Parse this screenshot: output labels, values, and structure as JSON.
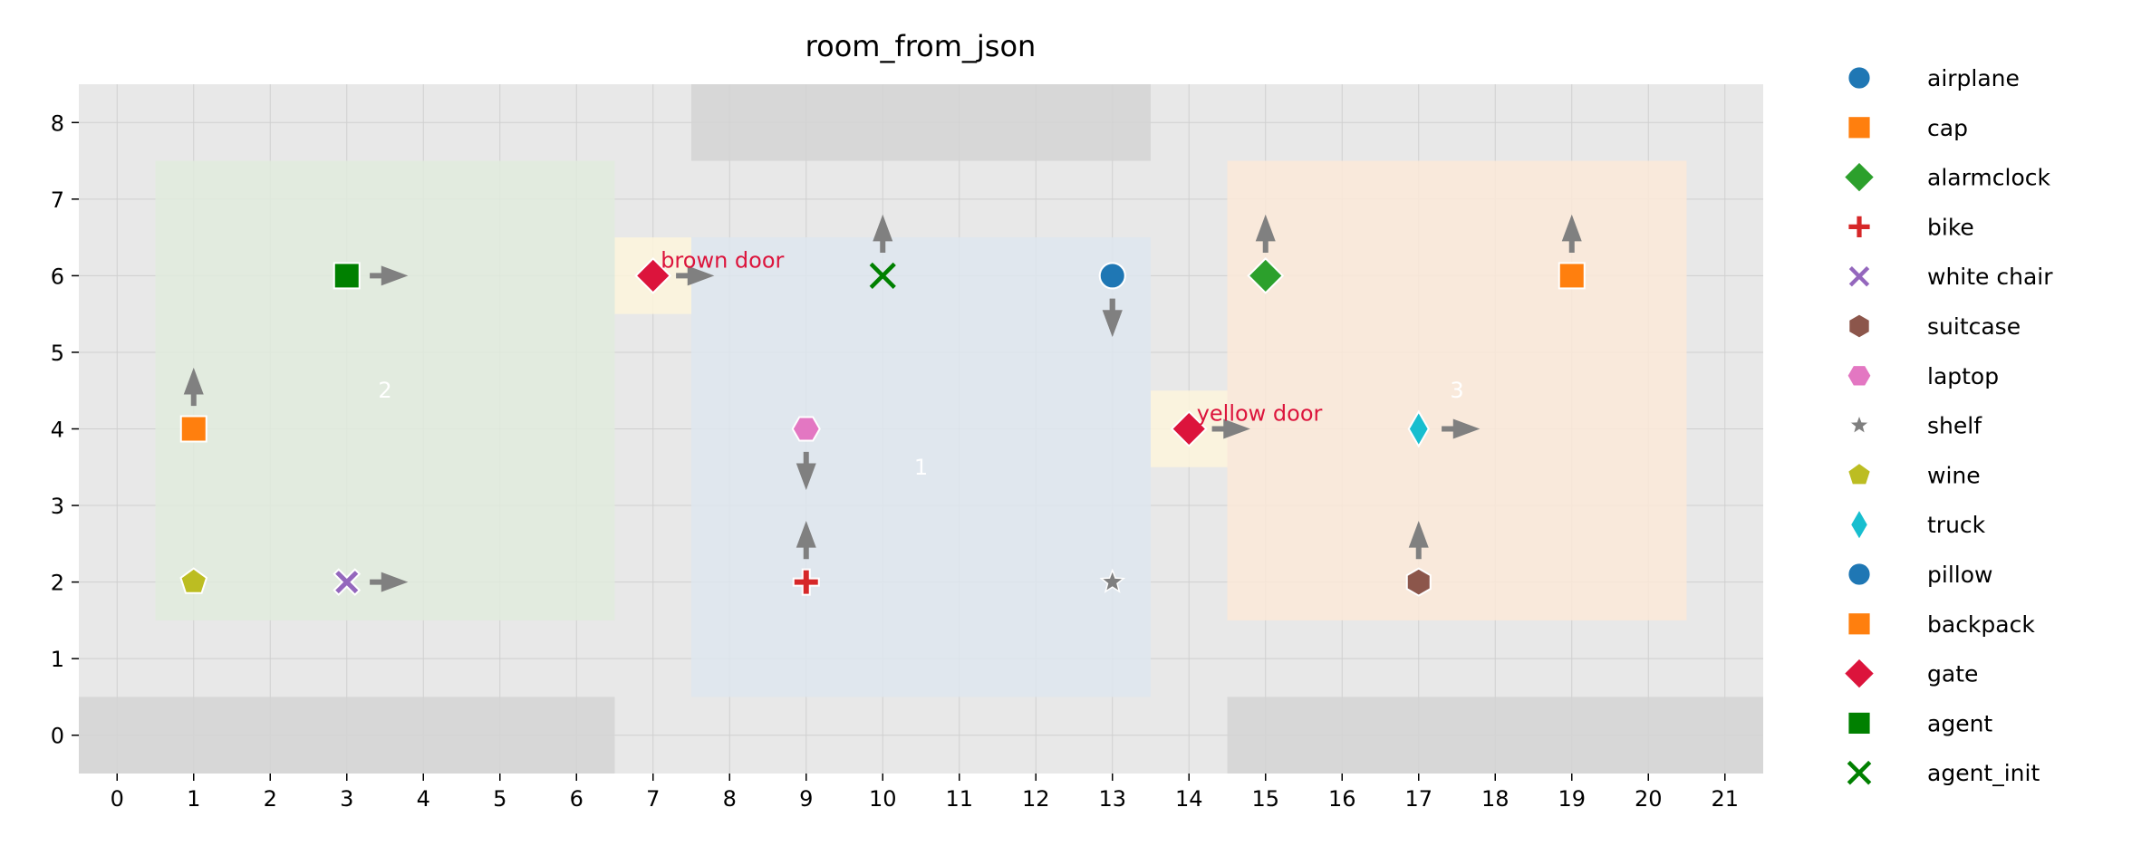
{
  "chart_data": {
    "type": "scatter",
    "title": "room_from_json",
    "xlim": [
      -0.5,
      21.5
    ],
    "ylim": [
      -0.5,
      8.5
    ],
    "xticks": [
      0,
      1,
      2,
      3,
      4,
      5,
      6,
      7,
      8,
      9,
      10,
      11,
      12,
      13,
      14,
      15,
      16,
      17,
      18,
      19,
      20,
      21
    ],
    "yticks": [
      0,
      1,
      2,
      3,
      4,
      5,
      6,
      7,
      8
    ],
    "grid": true,
    "legend_placement": "outside-right",
    "colors": {
      "background": "#e8e8e8",
      "grid": "#cfcfcf",
      "wall": "#d4d4d4",
      "arrow": "#808080",
      "door_label": "#dc143c",
      "room_label": "#ffffff"
    },
    "walls": [
      {
        "x": [
          7.5,
          13.5
        ],
        "y": [
          7.5,
          8.5
        ]
      },
      {
        "x": [
          -0.5,
          6.5
        ],
        "y": [
          -0.5,
          0.5
        ]
      },
      {
        "x": [
          14.5,
          21.5
        ],
        "y": [
          -0.5,
          0.5
        ]
      }
    ],
    "rooms": [
      {
        "label": "2",
        "x": [
          0.5,
          6.5
        ],
        "y": [
          1.5,
          7.5
        ],
        "color": "#e0ebdd",
        "label_at": [
          3.5,
          4.5
        ]
      },
      {
        "label": "1",
        "x": [
          7.5,
          13.5
        ],
        "y": [
          0.5,
          6.5
        ],
        "color": "#dee6ee",
        "label_at": [
          10.5,
          3.5
        ]
      },
      {
        "label": "3",
        "x": [
          14.5,
          20.5
        ],
        "y": [
          1.5,
          7.5
        ],
        "color": "#fbe9d8",
        "label_at": [
          17.5,
          4.5
        ]
      }
    ],
    "doors": [
      {
        "label": "brown door",
        "x": [
          6.5,
          7.5
        ],
        "y": [
          5.5,
          6.5
        ],
        "color": "#fdf5dc",
        "label_at": [
          7.1,
          6.2
        ]
      },
      {
        "label": "yellow door",
        "x": [
          13.5,
          14.5
        ],
        "y": [
          3.5,
          4.5
        ],
        "color": "#fdf5dc",
        "label_at": [
          14.1,
          4.2
        ]
      }
    ],
    "series": [
      {
        "name": "airplane",
        "marker": "circle",
        "color": "#1f77b4",
        "points": [
          {
            "x": 13,
            "y": 6,
            "dir": "down"
          }
        ]
      },
      {
        "name": "cap",
        "marker": "square",
        "color": "#ff7f0e",
        "points": [
          {
            "x": 1,
            "y": 4,
            "dir": "up"
          }
        ]
      },
      {
        "name": "alarmclock",
        "marker": "diamond",
        "color": "#2ca02c",
        "points": [
          {
            "x": 15,
            "y": 6,
            "dir": "up"
          }
        ]
      },
      {
        "name": "bike",
        "marker": "plus",
        "color": "#d62728",
        "points": [
          {
            "x": 9,
            "y": 2,
            "dir": "up"
          }
        ]
      },
      {
        "name": "white chair",
        "marker": "xfilled",
        "color": "#9467bd",
        "points": [
          {
            "x": 3,
            "y": 2,
            "dir": "right"
          }
        ]
      },
      {
        "name": "suitcase",
        "marker": "hexagon",
        "color": "#8c564b",
        "points": [
          {
            "x": 17,
            "y": 2,
            "dir": "up"
          }
        ]
      },
      {
        "name": "laptop",
        "marker": "hexagon2",
        "color": "#e377c2",
        "points": [
          {
            "x": 9,
            "y": 4,
            "dir": "down"
          }
        ]
      },
      {
        "name": "shelf",
        "marker": "star",
        "color": "#7f7f7f",
        "points": [
          {
            "x": 13,
            "y": 2,
            "dir": null
          }
        ]
      },
      {
        "name": "wine",
        "marker": "pentagon",
        "color": "#bcbd22",
        "points": [
          {
            "x": 1,
            "y": 2,
            "dir": null
          }
        ]
      },
      {
        "name": "truck",
        "marker": "thin_diamond",
        "color": "#17becf",
        "points": [
          {
            "x": 17,
            "y": 4,
            "dir": "right"
          }
        ]
      },
      {
        "name": "pillow",
        "marker": "circle",
        "color": "#1f77b4",
        "points": [
          {
            "x": 13,
            "y": 6,
            "dir": "down"
          }
        ]
      },
      {
        "name": "backpack",
        "marker": "square",
        "color": "#ff7f0e",
        "points": [
          {
            "x": 19,
            "y": 6,
            "dir": "up"
          }
        ]
      },
      {
        "name": "gate",
        "marker": "diamond",
        "color": "#dc143c",
        "points": [
          {
            "x": 7,
            "y": 6,
            "dir": "right"
          },
          {
            "x": 14,
            "y": 4,
            "dir": "right"
          }
        ]
      },
      {
        "name": "agent",
        "marker": "square",
        "color": "#008000",
        "points": [
          {
            "x": 3,
            "y": 6,
            "dir": "right"
          }
        ]
      },
      {
        "name": "agent_init",
        "marker": "x",
        "color": "#008000",
        "points": [
          {
            "x": 10,
            "y": 6,
            "dir": "up"
          }
        ]
      }
    ]
  }
}
